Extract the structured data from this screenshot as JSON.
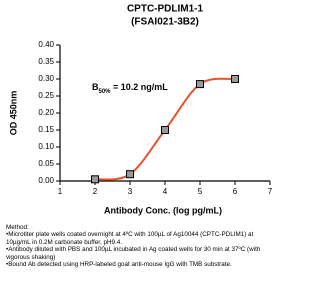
{
  "chart_data": {
    "type": "line",
    "title": "CPTC-PDLIM1-1",
    "subtitle": "(FSAI021-3B2)",
    "x_label": "Antibody Conc. (log pg/mL)",
    "y_label": "OD 450nm",
    "x": [
      2,
      3,
      4,
      5,
      6
    ],
    "values": [
      0.005,
      0.02,
      0.15,
      0.285,
      0.3
    ],
    "color": "#e8542a",
    "marker_color": "#999999",
    "smooth": true,
    "xlim": [
      1,
      7
    ],
    "xticks": [
      1,
      2,
      3,
      4,
      5,
      6,
      7
    ],
    "ylim": [
      0,
      0.4
    ],
    "yticks": [
      {
        "value": 0,
        "label": "0.00"
      },
      {
        "value": 0.05,
        "label": "0.05"
      },
      {
        "value": 0.1,
        "label": "0.10"
      },
      {
        "value": 0.15,
        "label": "0.15"
      },
      {
        "value": 0.2,
        "label": "0.20"
      },
      {
        "value": 0.25,
        "label": "0.25"
      },
      {
        "value": 0.3,
        "label": "0.30"
      },
      {
        "value": 0.35,
        "label": "0.35"
      },
      {
        "value": 0.4,
        "label": "0.40"
      }
    ],
    "annotation": {
      "text": "B",
      "subscript": "50%",
      "rest": " = 10.2 ng/mL"
    }
  },
  "method": {
    "title": "Method:",
    "items": [
      "Microtiter plate wells coated overnight at 4ºC  with 100µL of Ag10044 (CPTC-PDLIM1) at 10µg/mL in 0.2M carbonate buffer, pH9.4.",
      "Antibody diluted with PBS and 100µL incubated in Ag coated wells for 30 min at 37ºC (with vigorous shaking)",
      "Bound Ab detected using HRP-labeled goat anti-mouse IgG with TMB substrate."
    ]
  }
}
